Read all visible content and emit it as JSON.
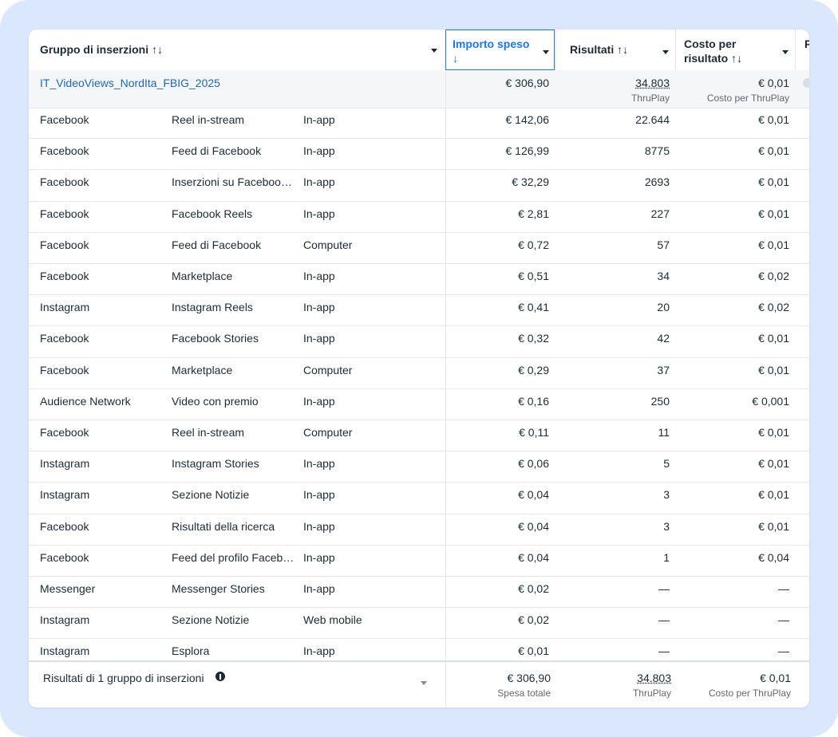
{
  "header": {
    "columns": [
      "Gruppo di inserzioni ↑↓",
      "Importo speso ↓",
      "Risultati ↑↓",
      "Costo per risultato ↑↓",
      "R"
    ]
  },
  "summary": {
    "name": "IT_VideoViews_NordIta_FBIG_2025",
    "spend": "€ 306,90",
    "results": "34.803",
    "results_note": "ThruPlay",
    "cost": "€ 0,01",
    "cost_note": "Costo per ThruPlay"
  },
  "rows": [
    [
      "Facebook",
      "Reel in-stream",
      "In-app",
      "€ 142,06",
      "22.644",
      "€ 0,01"
    ],
    [
      "Facebook",
      "Feed di Facebook",
      "In-app",
      "€ 126,99",
      "8775",
      "€ 0,01"
    ],
    [
      "Facebook",
      "Inserzioni su Faceboo…",
      "In-app",
      "€ 32,29",
      "2693",
      "€ 0,01"
    ],
    [
      "Facebook",
      "Facebook Reels",
      "In-app",
      "€ 2,81",
      "227",
      "€ 0,01"
    ],
    [
      "Facebook",
      "Feed di Facebook",
      "Computer",
      "€ 0,72",
      "57",
      "€ 0,01"
    ],
    [
      "Facebook",
      "Marketplace",
      "In-app",
      "€ 0,51",
      "34",
      "€ 0,02"
    ],
    [
      "Instagram",
      "Instagram Reels",
      "In-app",
      "€ 0,41",
      "20",
      "€ 0,02"
    ],
    [
      "Facebook",
      "Facebook Stories",
      "In-app",
      "€ 0,32",
      "42",
      "€ 0,01"
    ],
    [
      "Facebook",
      "Marketplace",
      "Computer",
      "€ 0,29",
      "37",
      "€ 0,01"
    ],
    [
      "Audience Network",
      "Video con premio",
      "In-app",
      "€ 0,16",
      "250",
      "€ 0,001"
    ],
    [
      "Facebook",
      "Reel in-stream",
      "Computer",
      "€ 0,11",
      "11",
      "€ 0,01"
    ],
    [
      "Instagram",
      "Instagram Stories",
      "In-app",
      "€ 0,06",
      "5",
      "€ 0,01"
    ],
    [
      "Instagram",
      "Sezione Notizie",
      "In-app",
      "€ 0,04",
      "3",
      "€ 0,01"
    ],
    [
      "Facebook",
      "Risultati della ricerca",
      "In-app",
      "€ 0,04",
      "3",
      "€ 0,01"
    ],
    [
      "Facebook",
      "Feed del profilo Faceb…",
      "In-app",
      "€ 0,04",
      "1",
      "€ 0,04"
    ],
    [
      "Messenger",
      "Messenger Stories",
      "In-app",
      "€ 0,02",
      "—",
      "—"
    ],
    [
      "Instagram",
      "Sezione Notizie",
      "Web mobile",
      "€ 0,02",
      "—",
      "—"
    ],
    [
      "Instagram",
      "Esplora",
      "In-app",
      "€ 0,01",
      "—",
      "—"
    ]
  ],
  "footer": {
    "label": "Risultati di 1 gruppo di inserzioni",
    "spend": "€ 306,90",
    "spend_note": "Spesa totale",
    "results": "34.803",
    "results_note": "ThruPlay",
    "cost": "€ 0,01",
    "cost_note": "Costo per ThruPlay"
  }
}
